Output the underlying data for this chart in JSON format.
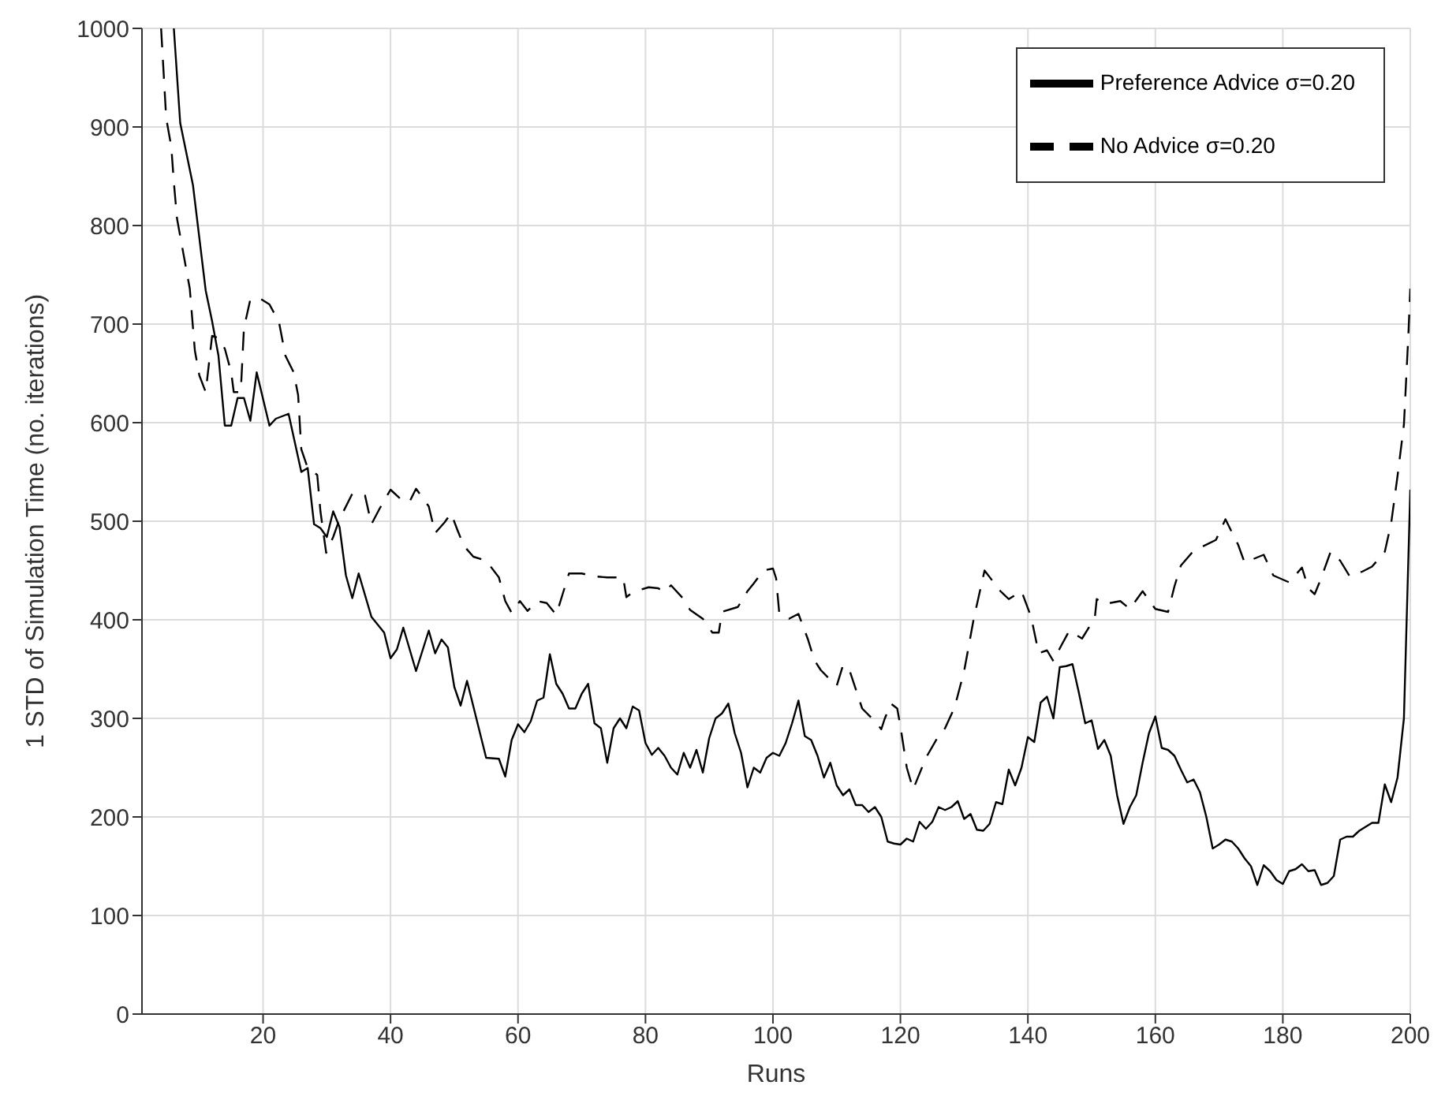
{
  "chart_data": {
    "type": "line",
    "xlabel": "Runs",
    "ylabel": "1 STD of Simulation Time (no. iterations)",
    "xlim": [
      1,
      200
    ],
    "xticks": [
      20,
      40,
      60,
      80,
      100,
      120,
      140,
      160,
      180,
      200
    ],
    "ylim": [
      0,
      1000
    ],
    "yticks": [
      0,
      100,
      200,
      300,
      400,
      500,
      600,
      700,
      800,
      900,
      1000
    ],
    "grid": true,
    "legend": "top right",
    "marker": "none",
    "series": [
      {
        "name": "Preference Advice σ=0.20",
        "color": "#000000",
        "line_style": "solid",
        "x": [
          6,
          7,
          9,
          11,
          12,
          13,
          14,
          15,
          16,
          17,
          18,
          19,
          21,
          22,
          24,
          26,
          27,
          28,
          29,
          30,
          31,
          32,
          33,
          34,
          35,
          37,
          39,
          40,
          41,
          42,
          44,
          46,
          47,
          48,
          49,
          50,
          51,
          52,
          55,
          57,
          58,
          59,
          60,
          61,
          62,
          63,
          64,
          65,
          66,
          67,
          68,
          69,
          70,
          71,
          72,
          73,
          74,
          75,
          76,
          77,
          78,
          79,
          80,
          81,
          82,
          83,
          84,
          85,
          86,
          87,
          88,
          89,
          90,
          91,
          92,
          93,
          94,
          95,
          96,
          97,
          98,
          99,
          100,
          101,
          102,
          103,
          104,
          105,
          106,
          107,
          108,
          109,
          110,
          111,
          112,
          113,
          114,
          115,
          116,
          117,
          118,
          119,
          120,
          121,
          122,
          123,
          124,
          125,
          126,
          127,
          128,
          129,
          130,
          131,
          132,
          133,
          134,
          135,
          136,
          137,
          138,
          139,
          140,
          141,
          142,
          143,
          144,
          145,
          146,
          147,
          148,
          149,
          150,
          151,
          152,
          153,
          154,
          155,
          156,
          157,
          158,
          159,
          160,
          161,
          162,
          163,
          164,
          165,
          166,
          167,
          168,
          169,
          170,
          171,
          172,
          173,
          174,
          175,
          176,
          177,
          178,
          179,
          180,
          181,
          182,
          183,
          184,
          185,
          186,
          187,
          188,
          189,
          190,
          191,
          192,
          193,
          194,
          195,
          196,
          197,
          198,
          199,
          200
        ],
        "values": [
          1000,
          904,
          841,
          734,
          703,
          668,
          597,
          597,
          625,
          625,
          602,
          651,
          597,
          604,
          609,
          550,
          554,
          497,
          493,
          484,
          510,
          494,
          445,
          422,
          447,
          403,
          387,
          361,
          370,
          392,
          348,
          389,
          366,
          380,
          372,
          332,
          313,
          338,
          260,
          259,
          241,
          278,
          294,
          286,
          297,
          318,
          321,
          365,
          335,
          325,
          310,
          310,
          325,
          335,
          295,
          290,
          255,
          290,
          300,
          290,
          312,
          308,
          275,
          263,
          270,
          262,
          250,
          243,
          265,
          250,
          268,
          245,
          280,
          300,
          305,
          315,
          285,
          265,
          230,
          250,
          245,
          260,
          265,
          262,
          275,
          295,
          318,
          282,
          278,
          262,
          240,
          255,
          232,
          222,
          228,
          212,
          212,
          205,
          210,
          200,
          175,
          173,
          172,
          178,
          175,
          195,
          188,
          195,
          210,
          207,
          210,
          216,
          198,
          203,
          187,
          186,
          193,
          215,
          213,
          248,
          232,
          250,
          281,
          276,
          316,
          322,
          300,
          352,
          353,
          355,
          326,
          295,
          298,
          269,
          278,
          262,
          222,
          193,
          210,
          222,
          255,
          285,
          302,
          270,
          268,
          262,
          248,
          235,
          238,
          225,
          200,
          168,
          172,
          177,
          175,
          168,
          158,
          150,
          131,
          151,
          145,
          136,
          132,
          145,
          147,
          152,
          145,
          146,
          131,
          133,
          140,
          177,
          180,
          180,
          186,
          190,
          194,
          194,
          233,
          215,
          240,
          300,
          532
        ]
      },
      {
        "name": "No Advice σ=0.20",
        "color": "#000000",
        "line_style": "dashed",
        "x": [
          4,
          4.8,
          5.6,
          6,
          6.5,
          8.5,
          9.3,
          10,
          11,
          12,
          13,
          14,
          15,
          15.4,
          16.5,
          17,
          18,
          19.5,
          21,
          22.5,
          23.5,
          24.8,
          25.5,
          26,
          27,
          28.5,
          29,
          29.9,
          31,
          32,
          34,
          36,
          37,
          38.3,
          40,
          42,
          43,
          44,
          46,
          47,
          48.5,
          49.5,
          50.5,
          51.5,
          53,
          55,
          57,
          58,
          59,
          60.3,
          61.5,
          63,
          64.5,
          66,
          67,
          68,
          70,
          72,
          74,
          76.5,
          77,
          78,
          80.5,
          82,
          83,
          84,
          86,
          87,
          89,
          90.5,
          91.5,
          92,
          94.5,
          96,
          97,
          98.5,
          100,
          100.5,
          101,
          102.5,
          104,
          105.5,
          106.5,
          107.5,
          109,
          110,
          111,
          112,
          114,
          116,
          117,
          117.5,
          118.5,
          119.5,
          120,
          121,
          122,
          124,
          125.7,
          127,
          128.5,
          130,
          131.5,
          133.2,
          135.7,
          137,
          139,
          140.5,
          141.7,
          143,
          144,
          145,
          146.5,
          148.5,
          150.5,
          150.8,
          152,
          154.5,
          156,
          158,
          160,
          162,
          163,
          164,
          166,
          169.5,
          171,
          173,
          174,
          177,
          178.5,
          181,
          183,
          184,
          185,
          186,
          187.5,
          189,
          190.5,
          192.5,
          194,
          196,
          197,
          198,
          199,
          199.7,
          200
        ],
        "values": [
          1000,
          909,
          880,
          844,
          807,
          736,
          673,
          648,
          631,
          688,
          686,
          675,
          651,
          631,
          631,
          696,
          725,
          726,
          720,
          702,
          668,
          651,
          628,
          573,
          554,
          547,
          510,
          468,
          484,
          502,
          528,
          526,
          497,
          513,
          532,
          520,
          520,
          533,
          515,
          488,
          499,
          508,
          491,
          475,
          464,
          460,
          443,
          419,
          407,
          419,
          409,
          419,
          417,
          405,
          426,
          447,
          447,
          444,
          443,
          443,
          423,
          428,
          433,
          432,
          428,
          435,
          421,
          410,
          401,
          387,
          387,
          408,
          413,
          429,
          437,
          450,
          452,
          442,
          406,
          401,
          406,
          380,
          359,
          349,
          339,
          333,
          354,
          349,
          310,
          297,
          289,
          299,
          315,
          310,
          292,
          250,
          228,
          260,
          279,
          290,
          311,
          348,
          401,
          450,
          429,
          421,
          429,
          403,
          366,
          369,
          358,
          371,
          389,
          381,
          402,
          421,
          416,
          419,
          411,
          429,
          411,
          408,
          434,
          455,
          470,
          481,
          502,
          476,
          458,
          466,
          445,
          438,
          453,
          432,
          426,
          442,
          469,
          460,
          444,
          449,
          454,
          469,
          498,
          546,
          598,
          689,
          736
        ]
      }
    ]
  }
}
